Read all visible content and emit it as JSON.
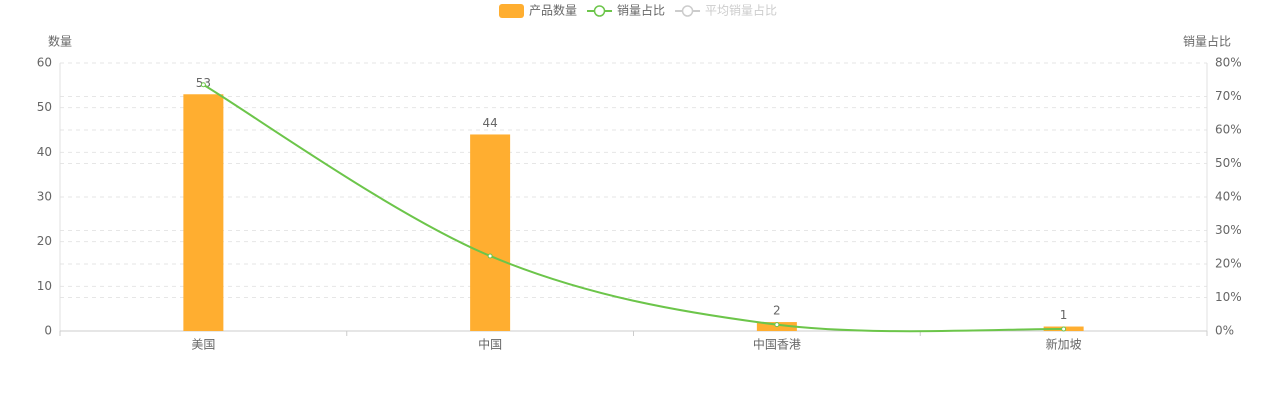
{
  "chart_data": {
    "type": "bar",
    "categories": [
      "美国",
      "中国",
      "中国香港",
      "新加坡"
    ],
    "ylabel": "数量",
    "y2label": "销量占比",
    "ylim": [
      0,
      60
    ],
    "yticks": [
      0,
      10,
      20,
      30,
      40,
      50,
      60
    ],
    "y2lim": [
      0,
      80
    ],
    "y2ticks": [
      {
        "value": 0,
        "label": "0%"
      },
      {
        "value": 10,
        "label": "10%"
      },
      {
        "value": 20,
        "label": "20%"
      },
      {
        "value": 30,
        "label": "30%"
      },
      {
        "value": 40,
        "label": "40%"
      },
      {
        "value": 50,
        "label": "50%"
      },
      {
        "value": 60,
        "label": "60%"
      },
      {
        "value": 70,
        "label": "70%"
      },
      {
        "value": 80,
        "label": "80%"
      }
    ],
    "grid": true,
    "legend": "top",
    "series": [
      {
        "name": "产品数量",
        "type": "bar",
        "color": "#ffae30",
        "values": [
          53,
          44,
          2,
          1
        ],
        "data_labels": true
      },
      {
        "name": "销量占比",
        "type": "line",
        "axis": "y2",
        "color": "#6cc54a",
        "smooth": true,
        "values": [
          73.5,
          22.4,
          1.9,
          0.6
        ]
      },
      {
        "name": "平均销量占比",
        "type": "line",
        "axis": "y2",
        "color": "#cccccc",
        "visible": false
      }
    ]
  }
}
